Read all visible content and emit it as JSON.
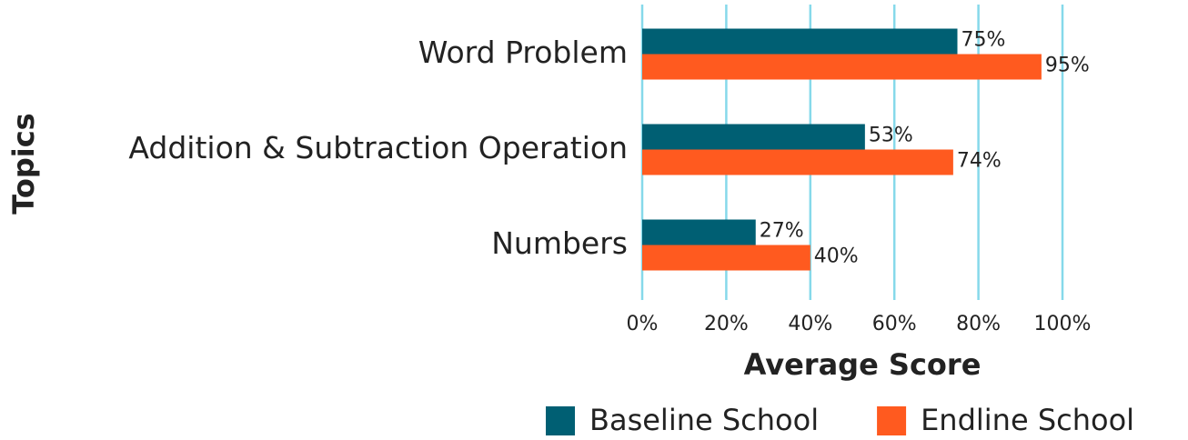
{
  "chart_data": {
    "type": "bar",
    "orientation": "horizontal",
    "x_label": "Average Score",
    "y_label": "Topics",
    "categories": [
      "Word Problem",
      "Addition & Subtraction Operation",
      "Numbers"
    ],
    "series": [
      {
        "name": "Baseline School",
        "color": "#005f73",
        "values": [
          75,
          53,
          27
        ],
        "value_labels": [
          "75%",
          "53%",
          "27%"
        ]
      },
      {
        "name": "Endline School",
        "color": "#ff5a1f",
        "values": [
          95,
          74,
          40
        ],
        "value_labels": [
          "95%",
          "74%",
          "40%"
        ]
      }
    ],
    "xlim": [
      0,
      100
    ],
    "xticks": [
      {
        "value": 0,
        "label": "0%"
      },
      {
        "value": 20,
        "label": "20%"
      },
      {
        "value": 40,
        "label": "40%"
      },
      {
        "value": 60,
        "label": "60%"
      },
      {
        "value": 80,
        "label": "80%"
      },
      {
        "value": 100,
        "label": "100%"
      }
    ],
    "grid": true,
    "legend": "bottom"
  }
}
